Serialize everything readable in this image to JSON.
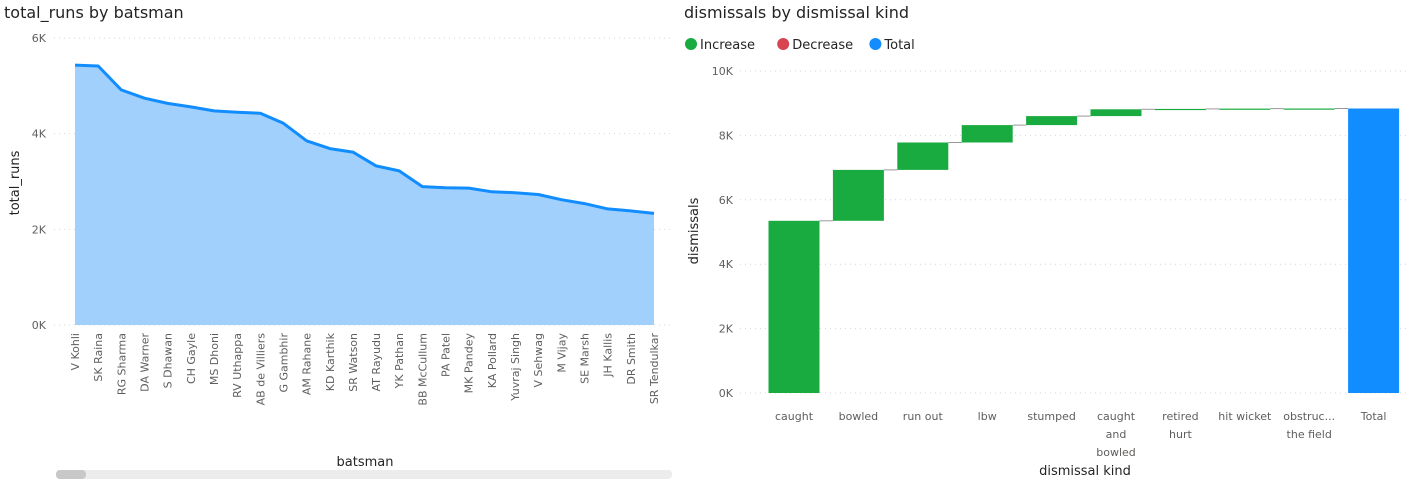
{
  "chart_data": [
    {
      "type": "area",
      "title": "total_runs by batsman",
      "xlabel": "batsman",
      "ylabel": "total_runs",
      "ylim": [
        0,
        6000
      ],
      "yticks": [
        "0K",
        "2K",
        "4K",
        "6K"
      ],
      "yticks_values": [
        0,
        2000,
        4000,
        6000
      ],
      "grid": true,
      "categories": [
        "V Kohli",
        "SK Raina",
        "RG Sharma",
        "DA Warner",
        "S Dhawan",
        "CH Gayle",
        "MS Dhoni",
        "RV Uthappa",
        "AB de Villiers",
        "G Gambhir",
        "AM Rahane",
        "KD Karthik",
        "SR Watson",
        "AT Rayudu",
        "YK Pathan",
        "BB McCullum",
        "PA Patel",
        "MK Pandey",
        "KA Pollard",
        "Yuvraj Singh",
        "V Sehwag",
        "M Vijay",
        "SE Marsh",
        "JH Kallis",
        "DR Smith",
        "SR Tendulkar"
      ],
      "values": [
        5434,
        5415,
        4914,
        4741,
        4632,
        4560,
        4477,
        4446,
        4428,
        4217,
        3850,
        3688,
        3614,
        3326,
        3222,
        2893,
        2870,
        2862,
        2784,
        2765,
        2728,
        2619,
        2539,
        2427,
        2385,
        2334
      ],
      "colors": {
        "line": "#118dff",
        "fill": "#a0d0fb"
      }
    },
    {
      "type": "waterfall",
      "title": "dismissals by dismissal kind",
      "xlabel": "dismissal kind",
      "ylabel": "dismissals",
      "ylim": [
        0,
        10000
      ],
      "yticks": [
        "0K",
        "2K",
        "4K",
        "6K",
        "8K",
        "10K"
      ],
      "yticks_values": [
        0,
        2000,
        4000,
        6000,
        8000,
        10000
      ],
      "grid": true,
      "legend": {
        "placement": "top-left",
        "items": [
          {
            "label": "Increase",
            "color": "#1aab40"
          },
          {
            "label": "Decrease",
            "color": "#d64550"
          },
          {
            "label": "Total",
            "color": "#118dff"
          }
        ]
      },
      "categories": [
        [
          "caught"
        ],
        [
          "bowled"
        ],
        [
          "run out"
        ],
        [
          "lbw"
        ],
        [
          "stumped"
        ],
        [
          "caught",
          "and",
          "bowled"
        ],
        [
          "retired",
          "hurt"
        ],
        [
          "hit wicket"
        ],
        [
          "obstruc...",
          "the field"
        ],
        [
          "Total"
        ]
      ],
      "values": [
        5348,
        1581,
        852,
        540,
        278,
        211,
        12,
        10,
        2,
        8834
      ],
      "kinds": [
        "increase",
        "increase",
        "increase",
        "increase",
        "increase",
        "increase",
        "increase",
        "increase",
        "increase",
        "total"
      ],
      "colors": {
        "increase": "#1aab40",
        "decrease": "#d64550",
        "total": "#118dff",
        "connector": "#999999"
      }
    }
  ]
}
